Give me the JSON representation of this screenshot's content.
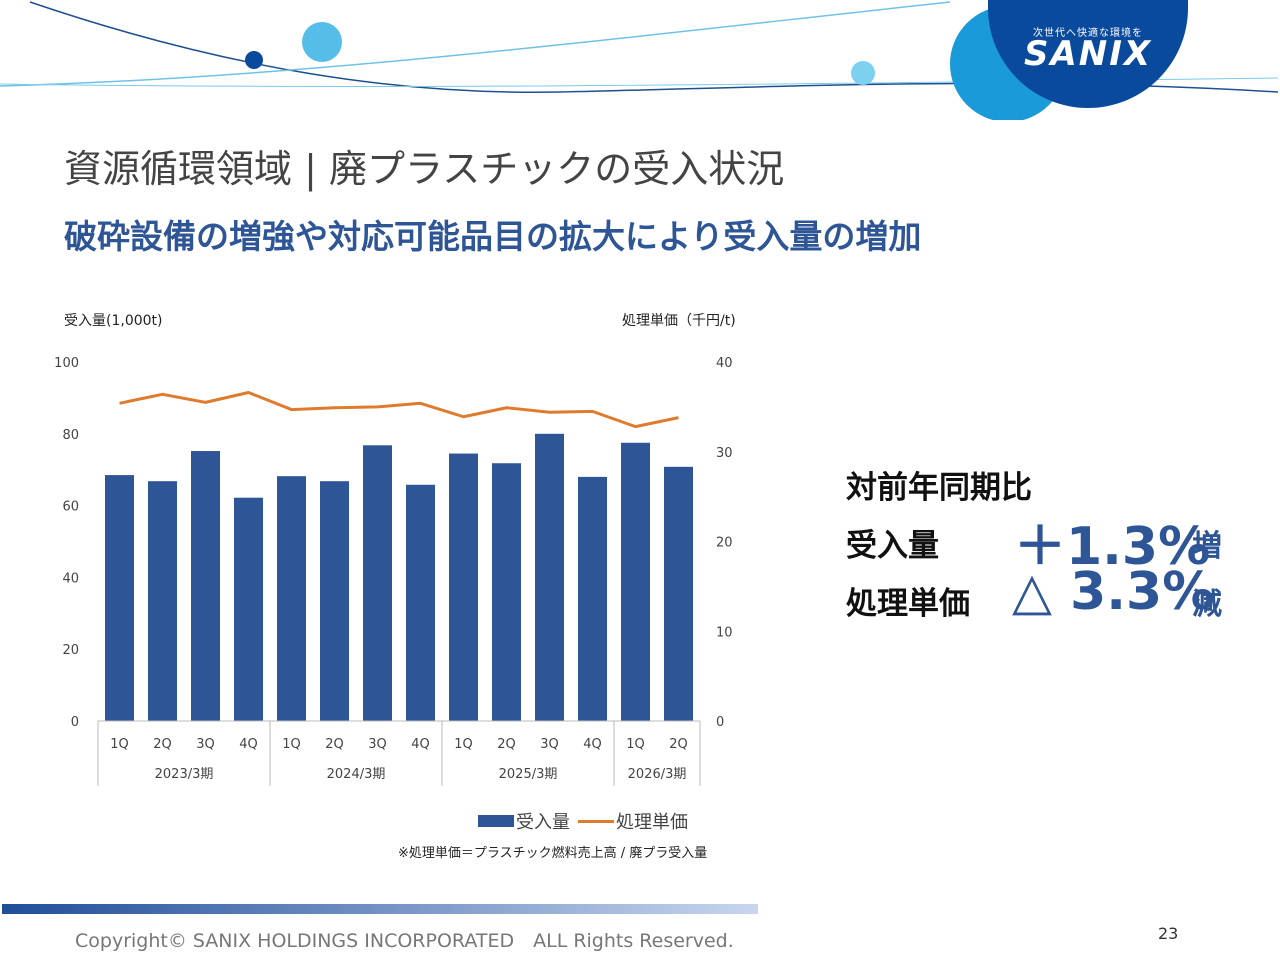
{
  "brand": {
    "tagline": "次世代へ快適な環境を",
    "name": "SANIX"
  },
  "title": "資源循環領域 | 廃プラスチックの受入状況",
  "subtitle": "破砕設備の増強や対応可能品目の拡大により受入量の増加",
  "chart_data": {
    "type": "bar+line",
    "categories": [
      "1Q",
      "2Q",
      "3Q",
      "4Q",
      "1Q",
      "2Q",
      "3Q",
      "4Q",
      "1Q",
      "2Q",
      "3Q",
      "4Q",
      "1Q",
      "2Q"
    ],
    "groups": [
      {
        "label": "2023/3期",
        "count": 4
      },
      {
        "label": "2024/3期",
        "count": 4
      },
      {
        "label": "2025/3期",
        "count": 4
      },
      {
        "label": "2026/3期",
        "count": 2
      }
    ],
    "series": [
      {
        "name": "受入量",
        "type": "bar",
        "axis": "left",
        "color": "#2e5596",
        "values": [
          68.5,
          66.8,
          75.2,
          62.2,
          68.2,
          66.8,
          76.8,
          65.8,
          74.5,
          71.8,
          80.0,
          68.0,
          77.5,
          70.8
        ]
      },
      {
        "name": "処理単価",
        "type": "line",
        "axis": "right",
        "color": "#e07b2e",
        "values": [
          35.4,
          36.4,
          35.5,
          36.6,
          34.7,
          34.9,
          35.0,
          35.4,
          33.9,
          34.9,
          34.4,
          34.5,
          32.8,
          33.8
        ]
      }
    ],
    "left_axis": {
      "label": "受入量(1,000t)",
      "min": 0,
      "max": 100,
      "ticks": [
        "100",
        "80",
        "60",
        "40",
        "20",
        "0"
      ]
    },
    "right_axis": {
      "label": "処理単価（千円/t)",
      "min": 0,
      "max": 40,
      "ticks": [
        "40",
        "30",
        "20",
        "10",
        "0"
      ]
    },
    "legend": {
      "placement": "bottom",
      "items": [
        "受入量",
        "処理単価"
      ]
    },
    "note": "※処理単価＝プラスチック燃料売上高 / 廃プラ受入量"
  },
  "summary": {
    "heading": "対前年同期比",
    "rows": [
      {
        "label": "受入量",
        "value": "＋1.3%",
        "suffix": "増"
      },
      {
        "label": "処理単価",
        "value": "△ 3.3%",
        "suffix": "減"
      }
    ]
  },
  "footer": {
    "copyright": "Copyright© SANIX HOLDINGS INCORPORATED　ALL Rights Reserved.",
    "page": "23"
  }
}
